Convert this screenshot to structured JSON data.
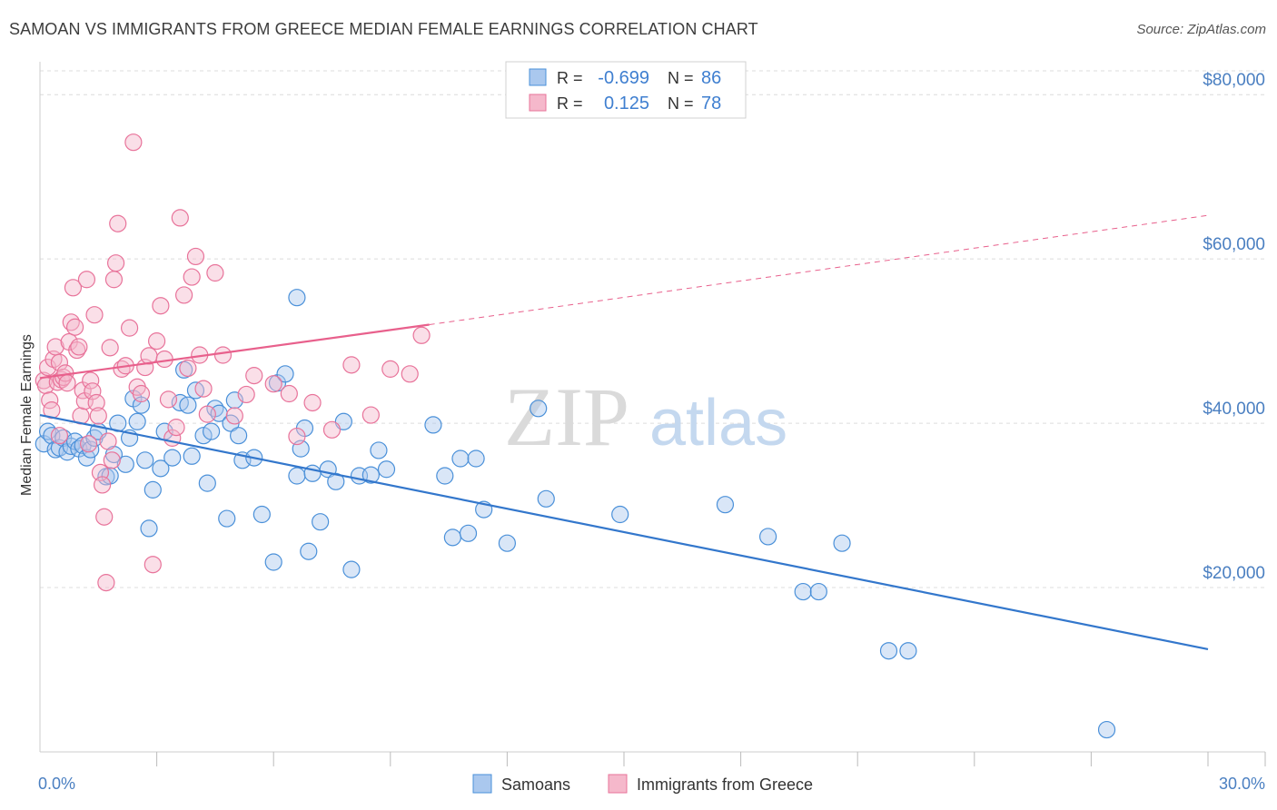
{
  "title": "SAMOAN VS IMMIGRANTS FROM GREECE MEDIAN FEMALE EARNINGS CORRELATION CHART",
  "source": "Source: ZipAtlas.com",
  "watermark": {
    "zip": "ZIP",
    "atlas": "atlas"
  },
  "colors": {
    "blue": "#4a90d9",
    "blue_fill": "#aac8ee",
    "blue_line": "#3377cc",
    "pink": "#e8739a",
    "pink_fill": "#f5b8cb",
    "pink_line": "#e8608c",
    "tick_label": "#4a7fc1",
    "grid": "#dcdcdc"
  },
  "legend": {
    "rows": [
      {
        "r_label": "R =",
        "r_value": "-0.699",
        "n_label": "N =",
        "n_value": "86"
      },
      {
        "r_label": "R =",
        "r_value": "0.125",
        "n_label": "N =",
        "n_value": "78"
      }
    ]
  },
  "bottom_legend": [
    "Samoans",
    "Immigrants from Greece"
  ],
  "chart_data": {
    "type": "scatter",
    "ylabel": "Median Female Earnings",
    "xlim": [
      0,
      30
    ],
    "ylim": [
      0,
      84000
    ],
    "x_tick_labels": [
      "0.0%",
      "30.0%"
    ],
    "y_ticks": [
      20000,
      40000,
      60000,
      80000
    ],
    "y_tick_labels": [
      "$20,000",
      "$40,000",
      "$60,000",
      "$80,000"
    ],
    "grid": "horizontal dashed",
    "series": [
      {
        "name": "Samoans",
        "trend": {
          "x": [
            0.0,
            30.0
          ],
          "y": [
            41000,
            12500
          ],
          "dashed_from": null
        },
        "points": [
          [
            0.1,
            37500
          ],
          [
            0.2,
            39000
          ],
          [
            0.3,
            38500
          ],
          [
            0.4,
            36800
          ],
          [
            0.5,
            37000
          ],
          [
            0.6,
            38200
          ],
          [
            0.7,
            36500
          ],
          [
            0.8,
            37200
          ],
          [
            0.9,
            37800
          ],
          [
            1.0,
            36900
          ],
          [
            1.1,
            37300
          ],
          [
            1.2,
            35800
          ],
          [
            1.3,
            36800
          ],
          [
            1.4,
            38200
          ],
          [
            1.5,
            39000
          ],
          [
            1.7,
            33500
          ],
          [
            1.8,
            33600
          ],
          [
            1.9,
            36200
          ],
          [
            2.0,
            40000
          ],
          [
            2.2,
            35000
          ],
          [
            2.3,
            38200
          ],
          [
            2.4,
            43000
          ],
          [
            2.5,
            40200
          ],
          [
            2.6,
            42200
          ],
          [
            2.7,
            35500
          ],
          [
            2.8,
            27200
          ],
          [
            2.9,
            31900
          ],
          [
            3.1,
            34500
          ],
          [
            3.2,
            39000
          ],
          [
            3.4,
            35800
          ],
          [
            3.6,
            42500
          ],
          [
            3.7,
            46500
          ],
          [
            3.8,
            42200
          ],
          [
            3.9,
            36000
          ],
          [
            4.0,
            44000
          ],
          [
            4.2,
            38500
          ],
          [
            4.3,
            32700
          ],
          [
            4.4,
            39000
          ],
          [
            4.5,
            41800
          ],
          [
            4.6,
            41200
          ],
          [
            4.8,
            28400
          ],
          [
            4.9,
            40000
          ],
          [
            5.0,
            42800
          ],
          [
            5.1,
            38500
          ],
          [
            5.2,
            35500
          ],
          [
            5.5,
            35800
          ],
          [
            5.7,
            28900
          ],
          [
            6.0,
            23100
          ],
          [
            6.1,
            44900
          ],
          [
            6.3,
            46000
          ],
          [
            6.6,
            33600
          ],
          [
            6.7,
            36900
          ],
          [
            6.8,
            39400
          ],
          [
            6.9,
            24400
          ],
          [
            7.0,
            33900
          ],
          [
            7.2,
            28000
          ],
          [
            7.4,
            34400
          ],
          [
            7.6,
            32900
          ],
          [
            7.8,
            40200
          ],
          [
            8.0,
            22200
          ],
          [
            8.2,
            33600
          ],
          [
            8.5,
            33700
          ],
          [
            8.7,
            36700
          ],
          [
            8.9,
            34400
          ],
          [
            10.1,
            39800
          ],
          [
            10.4,
            33600
          ],
          [
            10.6,
            26100
          ],
          [
            10.8,
            35700
          ],
          [
            11.0,
            26600
          ],
          [
            11.2,
            35700
          ],
          [
            11.4,
            29500
          ],
          [
            12.0,
            25400
          ],
          [
            12.8,
            41800
          ],
          [
            13.0,
            30800
          ],
          [
            14.9,
            28900
          ],
          [
            17.6,
            30100
          ],
          [
            18.7,
            26200
          ],
          [
            19.6,
            19500
          ],
          [
            20.0,
            19500
          ],
          [
            20.6,
            25400
          ],
          [
            21.8,
            12300
          ],
          [
            22.3,
            12300
          ],
          [
            27.4,
            2700
          ],
          [
            6.6,
            55300
          ]
        ]
      },
      {
        "name": "Immigrants from Greece",
        "trend": {
          "x": [
            0.0,
            10.0,
            30.0
          ],
          "y": [
            45500,
            52000,
            65300
          ],
          "dashed_from": 10.0
        },
        "points": [
          [
            0.1,
            45200
          ],
          [
            0.15,
            44600
          ],
          [
            0.2,
            46800
          ],
          [
            0.25,
            42800
          ],
          [
            0.3,
            41600
          ],
          [
            0.35,
            47800
          ],
          [
            0.4,
            49300
          ],
          [
            0.45,
            45000
          ],
          [
            0.5,
            47400
          ],
          [
            0.55,
            45300
          ],
          [
            0.6,
            45600
          ],
          [
            0.65,
            46100
          ],
          [
            0.7,
            44900
          ],
          [
            0.75,
            49900
          ],
          [
            0.8,
            52300
          ],
          [
            0.85,
            56500
          ],
          [
            0.9,
            51700
          ],
          [
            0.95,
            48900
          ],
          [
            1.0,
            49300
          ],
          [
            1.05,
            40900
          ],
          [
            1.1,
            44000
          ],
          [
            1.15,
            42700
          ],
          [
            1.2,
            57500
          ],
          [
            1.25,
            37500
          ],
          [
            1.3,
            45200
          ],
          [
            1.35,
            43900
          ],
          [
            1.4,
            53200
          ],
          [
            1.45,
            42500
          ],
          [
            1.5,
            40900
          ],
          [
            1.55,
            34000
          ],
          [
            1.6,
            32500
          ],
          [
            1.65,
            28600
          ],
          [
            1.7,
            20600
          ],
          [
            1.75,
            37800
          ],
          [
            1.8,
            49200
          ],
          [
            1.85,
            35500
          ],
          [
            1.9,
            57500
          ],
          [
            1.95,
            59500
          ],
          [
            2.0,
            64300
          ],
          [
            2.1,
            46600
          ],
          [
            2.2,
            47000
          ],
          [
            2.3,
            51600
          ],
          [
            2.4,
            74200
          ],
          [
            2.5,
            44400
          ],
          [
            2.6,
            43600
          ],
          [
            2.7,
            46800
          ],
          [
            2.8,
            48200
          ],
          [
            2.9,
            22800
          ],
          [
            3.0,
            50000
          ],
          [
            3.1,
            54300
          ],
          [
            3.2,
            47800
          ],
          [
            3.3,
            42900
          ],
          [
            3.4,
            38200
          ],
          [
            3.5,
            39500
          ],
          [
            3.6,
            65000
          ],
          [
            3.7,
            55600
          ],
          [
            3.8,
            46700
          ],
          [
            3.9,
            57800
          ],
          [
            4.0,
            60300
          ],
          [
            4.1,
            48300
          ],
          [
            4.2,
            44200
          ],
          [
            4.3,
            41100
          ],
          [
            4.5,
            58300
          ],
          [
            4.7,
            48300
          ],
          [
            5.0,
            40900
          ],
          [
            5.3,
            43500
          ],
          [
            5.5,
            45800
          ],
          [
            6.0,
            44800
          ],
          [
            6.4,
            43600
          ],
          [
            6.6,
            38400
          ],
          [
            7.0,
            42500
          ],
          [
            7.5,
            39200
          ],
          [
            8.0,
            47100
          ],
          [
            8.5,
            41000
          ],
          [
            9.0,
            46600
          ],
          [
            9.5,
            46000
          ],
          [
            9.8,
            50700
          ],
          [
            0.5,
            38500
          ]
        ]
      }
    ]
  }
}
